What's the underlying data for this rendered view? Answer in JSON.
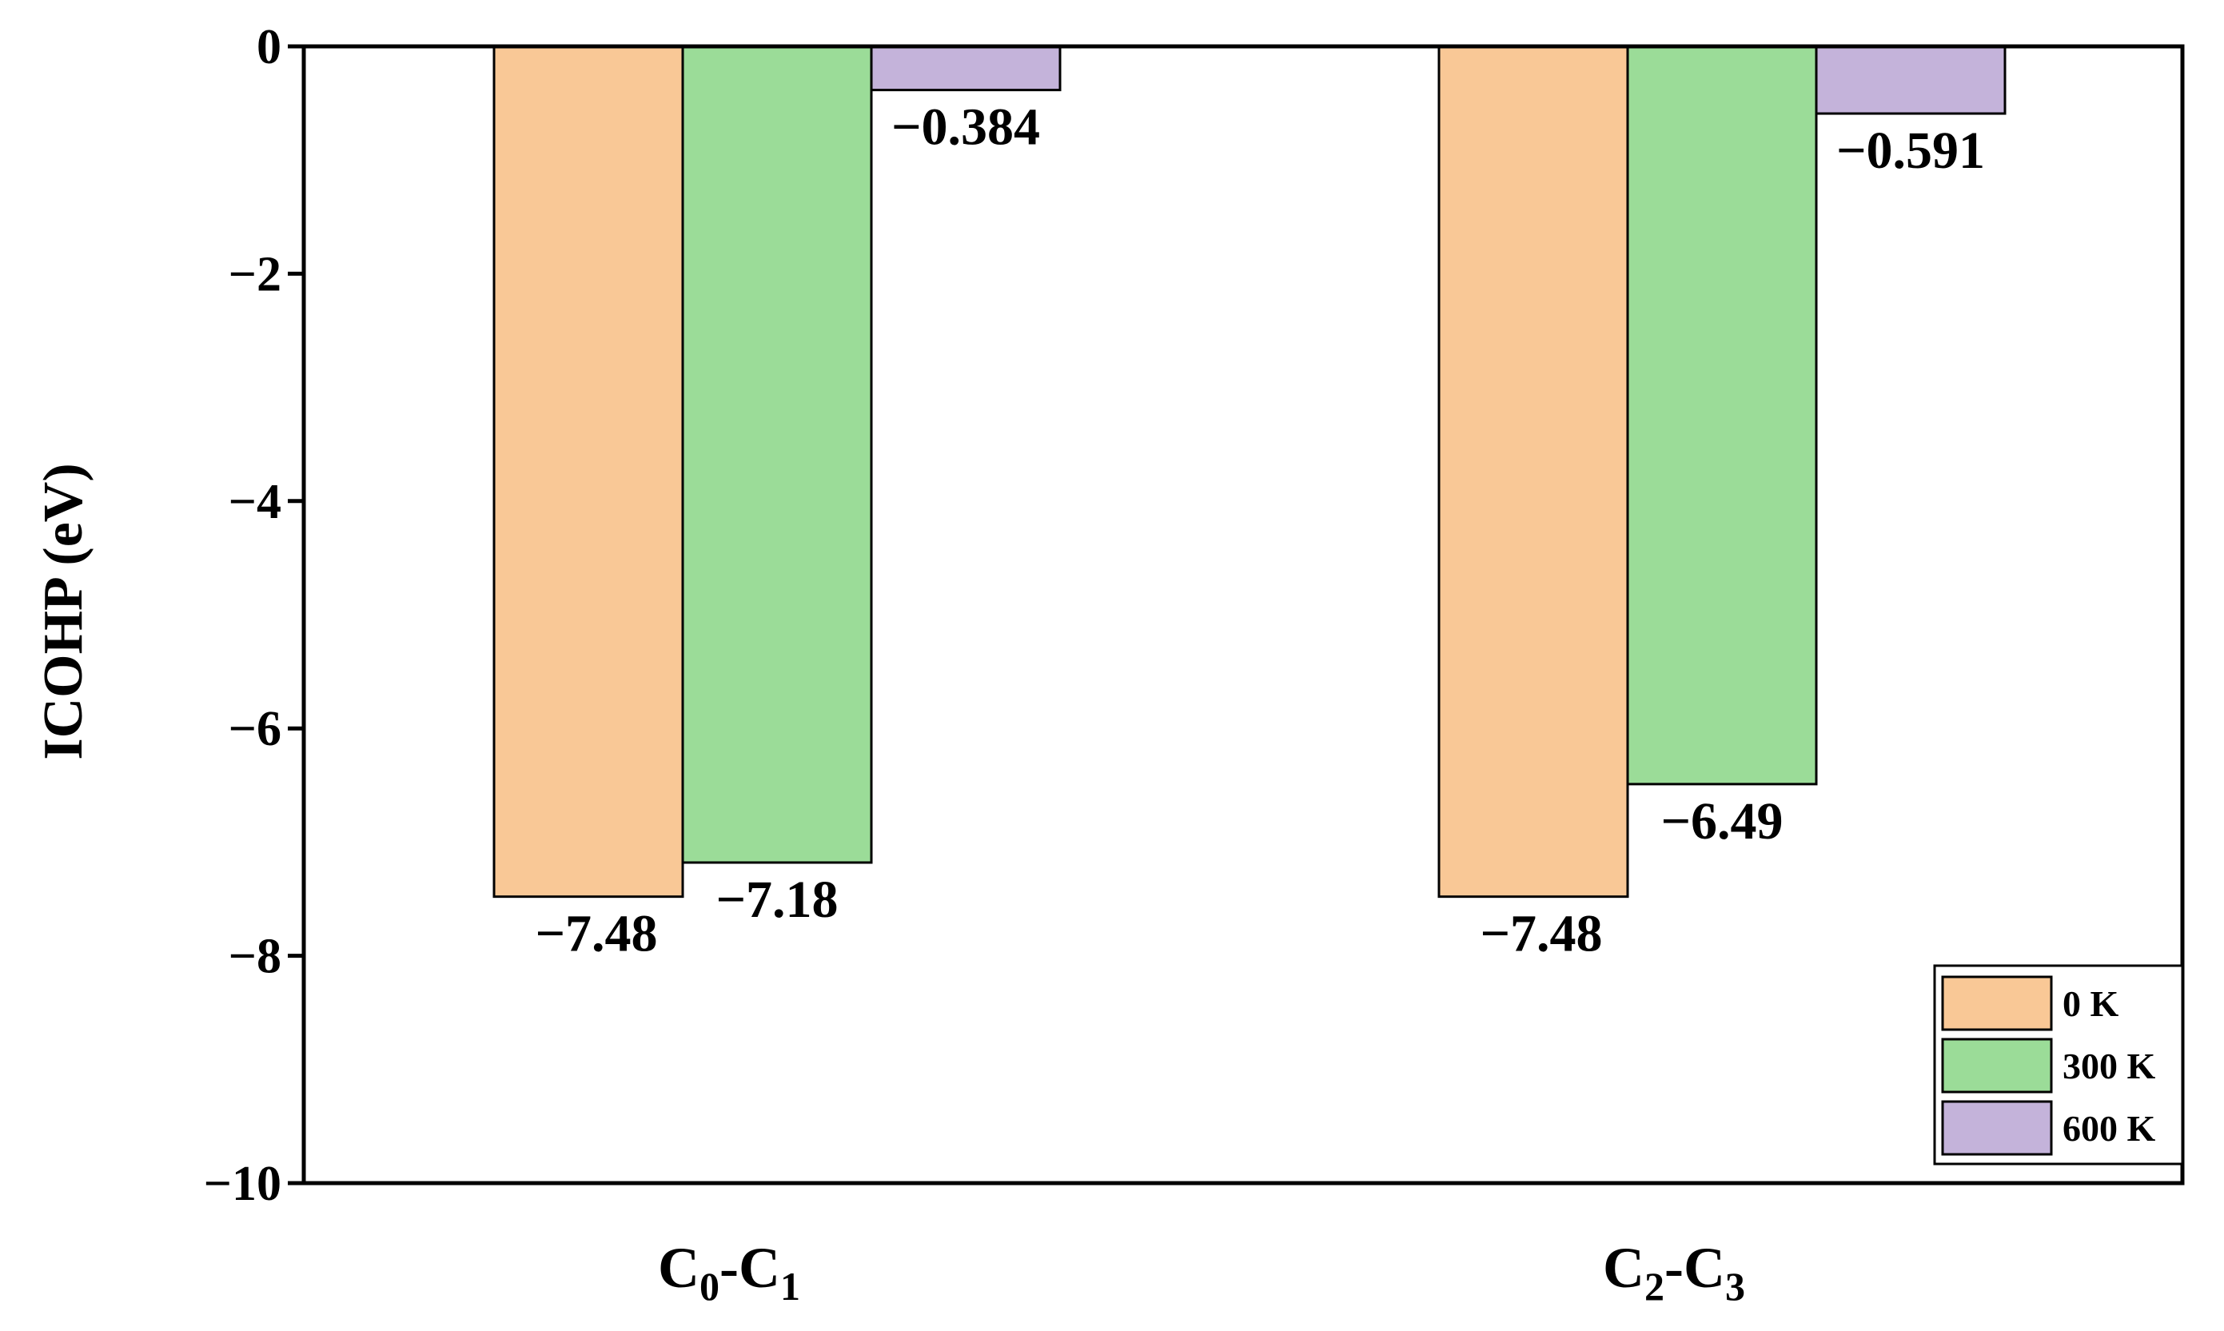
{
  "chart_data": {
    "type": "bar",
    "title": "",
    "xlabel": "",
    "ylabel": "ICOHP (eV)",
    "ylim": [
      -10,
      0
    ],
    "yticks": [
      0,
      -2,
      -4,
      -6,
      -8,
      -10
    ],
    "ytick_labels": [
      "0",
      "−2",
      "−4",
      "−6",
      "−8",
      "−10"
    ],
    "categories": [
      {
        "base": "C",
        "sub1": "0",
        "sep": "-",
        "sub2": "1"
      },
      {
        "base": "C",
        "sub1": "2",
        "sep": "-",
        "sub2": "3"
      }
    ],
    "series": [
      {
        "name": "0 K",
        "color": "#f9c896",
        "values": [
          -7.48,
          -7.48
        ],
        "labels": [
          "−7.48",
          "−7.48"
        ]
      },
      {
        "name": "300 K",
        "color": "#9bdc98",
        "values": [
          -7.18,
          -6.49
        ],
        "labels": [
          "−7.18",
          "−6.49"
        ]
      },
      {
        "name": "600 K",
        "color": "#c4b3da",
        "values": [
          -0.384,
          -0.591
        ],
        "labels": [
          "−0.384",
          "−0.591"
        ]
      }
    ],
    "grid": false,
    "legend_position": "bottom-right"
  }
}
